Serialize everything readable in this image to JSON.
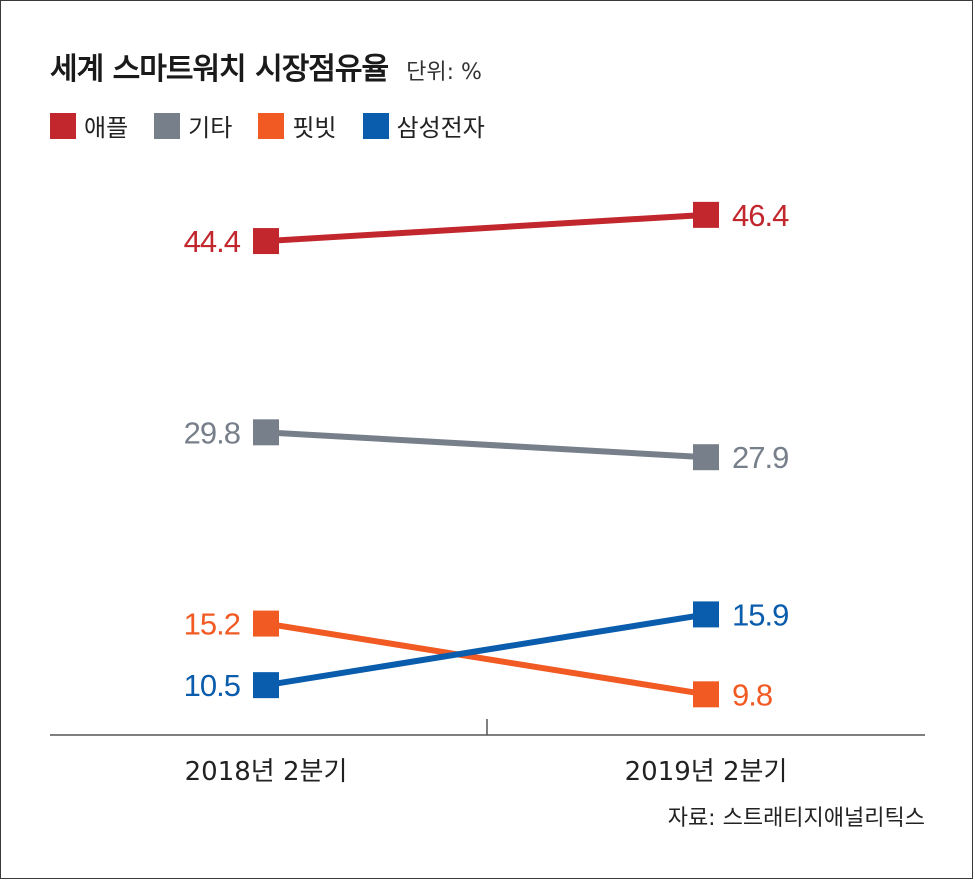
{
  "chart_data": {
    "type": "line",
    "title": "세계 스마트워치 시장점유율",
    "unit": "단위: %",
    "categories": [
      "2018년 2분기",
      "2019년 2분기"
    ],
    "series": [
      {
        "name": "애플",
        "color": "#c1272d",
        "values": [
          44.4,
          46.4
        ],
        "labels": [
          "44.4",
          "46.4"
        ]
      },
      {
        "name": "기타",
        "color": "#77808a",
        "values": [
          29.8,
          27.9
        ],
        "labels": [
          "29.8",
          "27.9"
        ]
      },
      {
        "name": "핏빗",
        "color": "#f15a22",
        "values": [
          15.2,
          9.8
        ],
        "labels": [
          "15.2",
          "9.8"
        ]
      },
      {
        "name": "삼성전자",
        "color": "#0a5cad",
        "values": [
          10.5,
          15.9
        ],
        "labels": [
          "10.5",
          "15.9"
        ]
      }
    ],
    "legend_position": "top-left",
    "source": "자료: 스트래티지애널리틱스"
  }
}
